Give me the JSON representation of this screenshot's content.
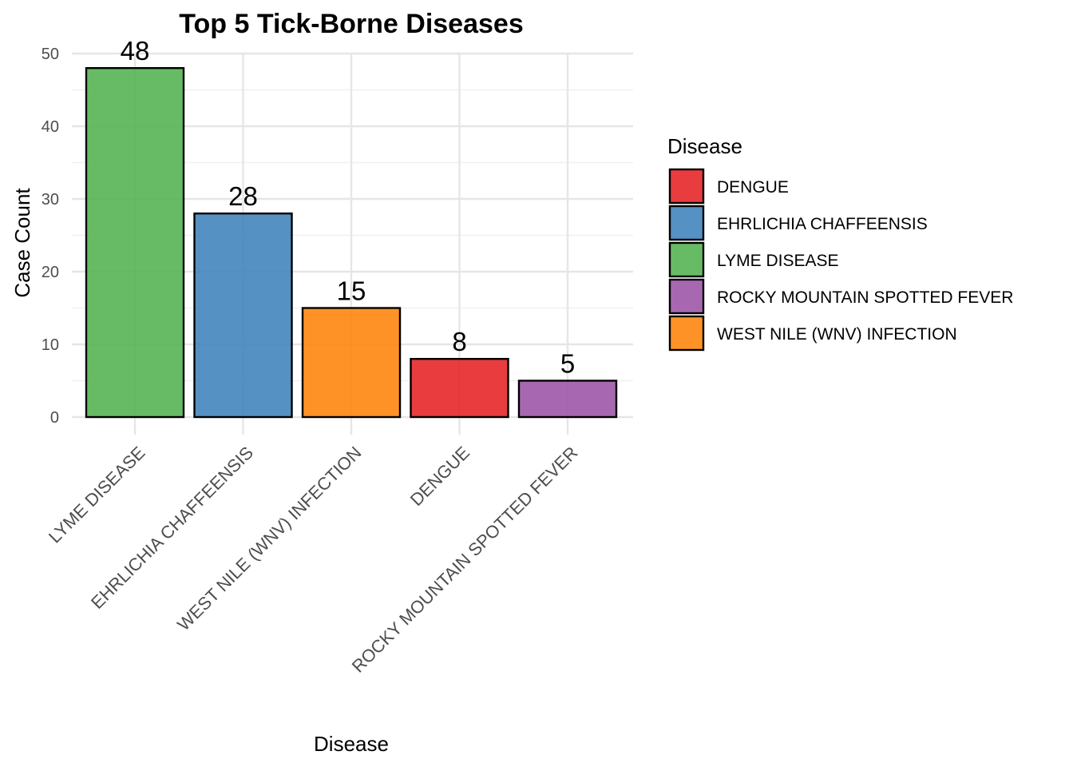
{
  "chart_data": {
    "type": "bar",
    "title": "Top 5 Tick-Borne Diseases",
    "xlabel": "Disease",
    "ylabel": "Case Count",
    "categories": [
      "LYME DISEASE",
      "EHRLICHIA CHAFFEENSIS",
      "WEST NILE (WNV) INFECTION",
      "DENGUE",
      "ROCKY MOUNTAIN SPOTTED FEVER"
    ],
    "values": [
      48,
      28,
      15,
      8,
      5
    ],
    "data_labels": [
      "48",
      "28",
      "15",
      "8",
      "5"
    ],
    "ylim": [
      0,
      50
    ],
    "yticks": [
      0,
      10,
      20,
      30,
      40,
      50
    ],
    "grid": true,
    "legend": {
      "title": "Disease",
      "placement": "right",
      "entries": [
        {
          "label": "DENGUE",
          "color": "#E41A1C"
        },
        {
          "label": "EHRLICHIA CHAFFEENSIS",
          "color": "#377EB8"
        },
        {
          "label": "LYME DISEASE",
          "color": "#4DAF4A"
        },
        {
          "label": "ROCKY MOUNTAIN SPOTTED FEVER",
          "color": "#984EA3"
        },
        {
          "label": "WEST NILE (WNV) INFECTION",
          "color": "#FF7F00"
        }
      ]
    },
    "bar_colors": [
      "#4DAF4A",
      "#377EB8",
      "#FF7F00",
      "#E41A1C",
      "#984EA3"
    ],
    "bar_opacity": 0.85
  }
}
